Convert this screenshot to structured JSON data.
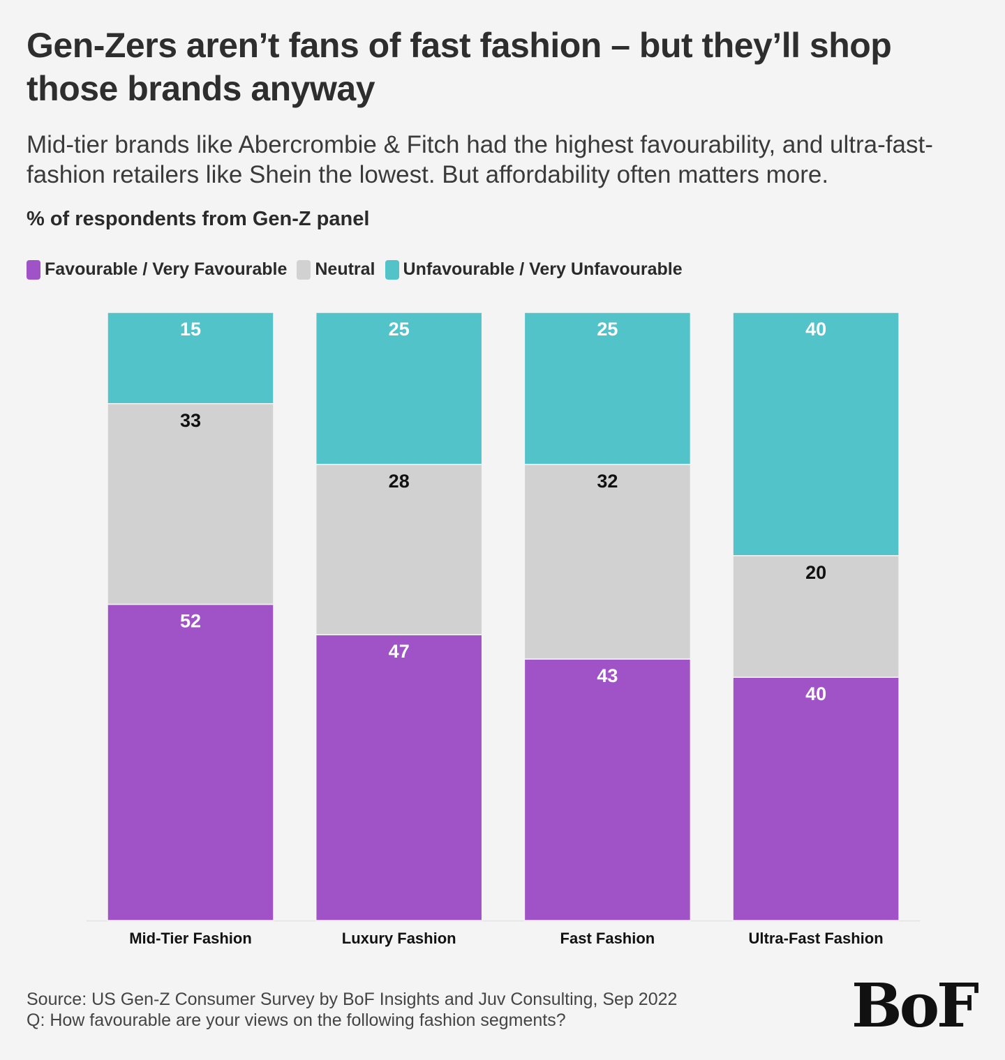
{
  "header": {
    "title": "Gen-Zers aren’t fans of fast fashion – but they’ll shop those brands anyway",
    "subtitle": "Mid-tier brands like Abercrombie & Fitch had the highest favourability, and ultra-fast-fashion retailers like Shein the lowest. But affordability often matters more.",
    "unit_label": "% of respondents from Gen-Z panel"
  },
  "legend": [
    {
      "label": "Favourable / Very Favourable",
      "color": "#a053c6"
    },
    {
      "label": "Neutral",
      "color": "#d1d1d1"
    },
    {
      "label": "Unfavourable / Very Unfavourable",
      "color": "#52c3c9"
    }
  ],
  "chart_data": {
    "type": "bar",
    "stacked": true,
    "categories": [
      "Mid-Tier Fashion",
      "Luxury Fashion",
      "Fast Fashion",
      "Ultra-Fast Fashion"
    ],
    "series": [
      {
        "name": "Favourable / Very Favourable",
        "values": [
          52,
          47,
          43,
          40
        ],
        "color": "#a053c6",
        "label_color": "#ffffff"
      },
      {
        "name": "Neutral",
        "values": [
          33,
          28,
          32,
          20
        ],
        "color": "#d1d1d1",
        "label_color": "#111111"
      },
      {
        "name": "Unfavourable / Very Unfavourable",
        "values": [
          15,
          25,
          25,
          40
        ],
        "color": "#52c3c9",
        "label_color": "#ffffff"
      }
    ],
    "ylim": [
      0,
      100
    ],
    "grid": false,
    "legend_position": "top-left"
  },
  "footer": {
    "source_line1": "Source: US Gen-Z Consumer Survey by BoF Insights and Juv Consulting, Sep 2022",
    "source_line2": "Q: How favourable are your views on the following fashion segments?",
    "logo_text": "BoF"
  }
}
